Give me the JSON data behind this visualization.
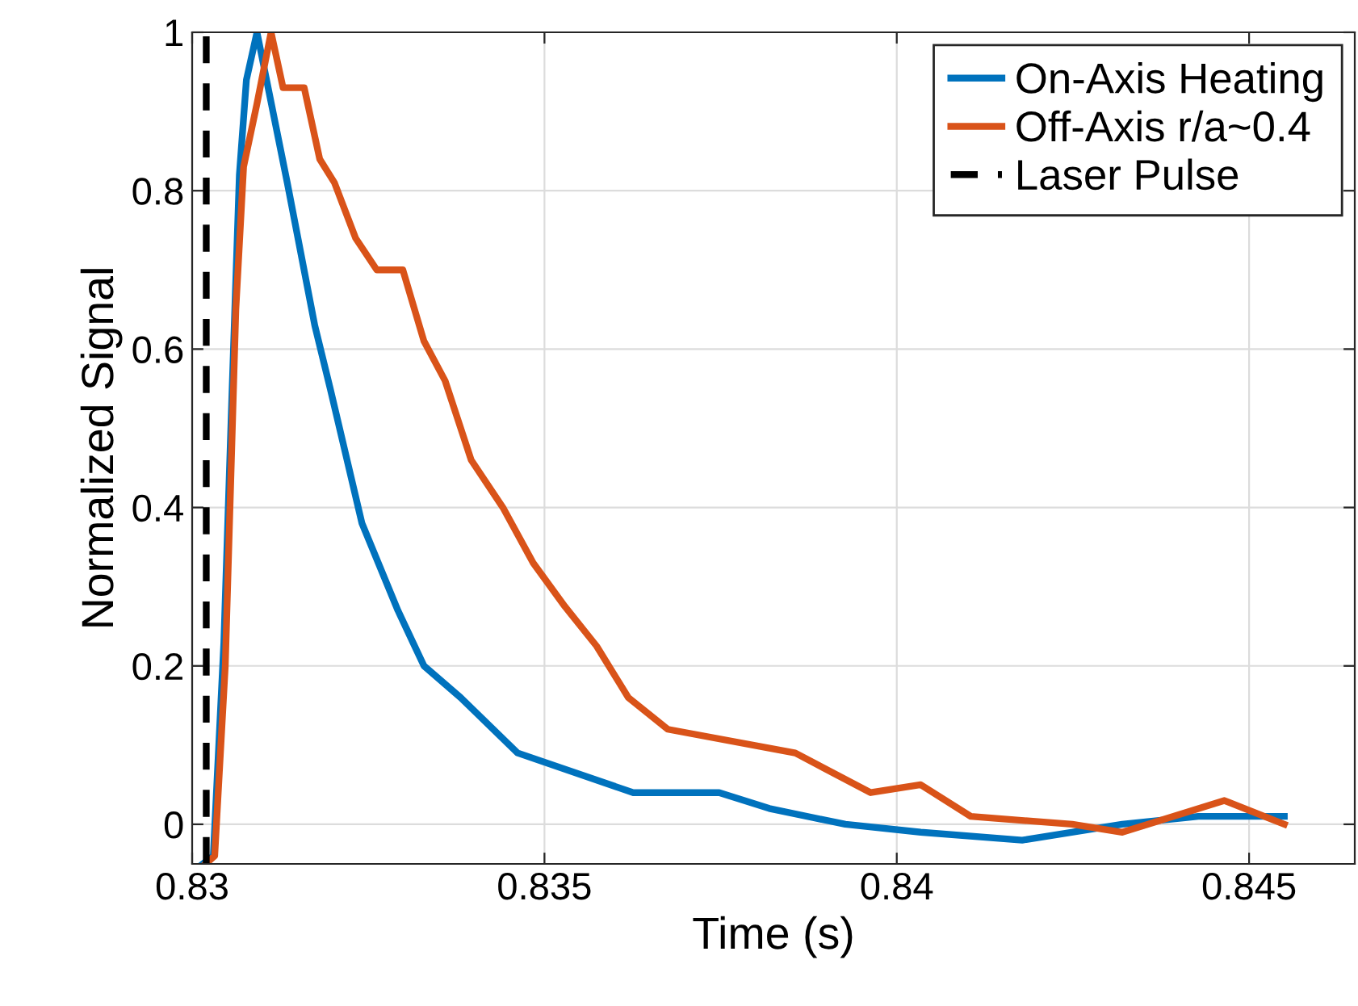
{
  "chart_data": {
    "type": "line",
    "xlabel": "Time (s)",
    "ylabel": "Normalized Signal",
    "xlim": [
      0.83,
      0.8465
    ],
    "ylim": [
      -0.05,
      1
    ],
    "xticks": [
      0.83,
      0.835,
      0.84,
      0.845
    ],
    "yticks": [
      0,
      0.2,
      0.4,
      0.6,
      0.8,
      1
    ],
    "grid": true,
    "legend": "top right",
    "line_style": "solid",
    "series": [
      {
        "name": "On-Axis Heating",
        "color": "#0072bd",
        "x": [
          0.83015,
          0.8303,
          0.83045,
          0.83056,
          0.83067,
          0.83077,
          0.83092,
          0.83135,
          0.83174,
          0.83196,
          0.83241,
          0.83292,
          0.83329,
          0.83381,
          0.83462,
          0.83626,
          0.83748,
          0.83819,
          0.83927,
          0.84034,
          0.84178,
          0.8432,
          0.84428,
          0.84535,
          0.8455
        ],
        "values": [
          -0.05,
          -0.04,
          0.23,
          0.53,
          0.82,
          0.94,
          1.0,
          0.81,
          0.63,
          0.55,
          0.38,
          0.27,
          0.2,
          0.16,
          0.09,
          0.04,
          0.04,
          0.02,
          0.0,
          -0.01,
          -0.02,
          0.0,
          0.01,
          0.01,
          0.01
        ]
      },
      {
        "name": "Off-Axis r/a~0.4",
        "color": "#d95319",
        "x": [
          0.83019,
          0.83032,
          0.83047,
          0.83062,
          0.83073,
          0.83092,
          0.83112,
          0.83129,
          0.83159,
          0.83181,
          0.83202,
          0.83232,
          0.83262,
          0.83299,
          0.83329,
          0.83359,
          0.83396,
          0.83441,
          0.83484,
          0.83529,
          0.83574,
          0.83619,
          0.83675,
          0.83856,
          0.83963,
          0.84034,
          0.84105,
          0.84249,
          0.8432,
          0.84465,
          0.8455
        ],
        "values": [
          -0.05,
          -0.04,
          0.2,
          0.65,
          0.83,
          0.91,
          1.0,
          0.93,
          0.93,
          0.84,
          0.81,
          0.74,
          0.7,
          0.7,
          0.61,
          0.56,
          0.46,
          0.4,
          0.33,
          0.275,
          0.225,
          0.16,
          0.12,
          0.09,
          0.04,
          0.05,
          0.01,
          0.0,
          -0.01,
          0.03,
          0.0
        ]
      },
      {
        "name": "Laser Pulse",
        "color": "#000000",
        "line_style": "dashed",
        "x": [
          0.8302,
          0.8302
        ],
        "values": [
          -0.05,
          1
        ]
      }
    ]
  }
}
